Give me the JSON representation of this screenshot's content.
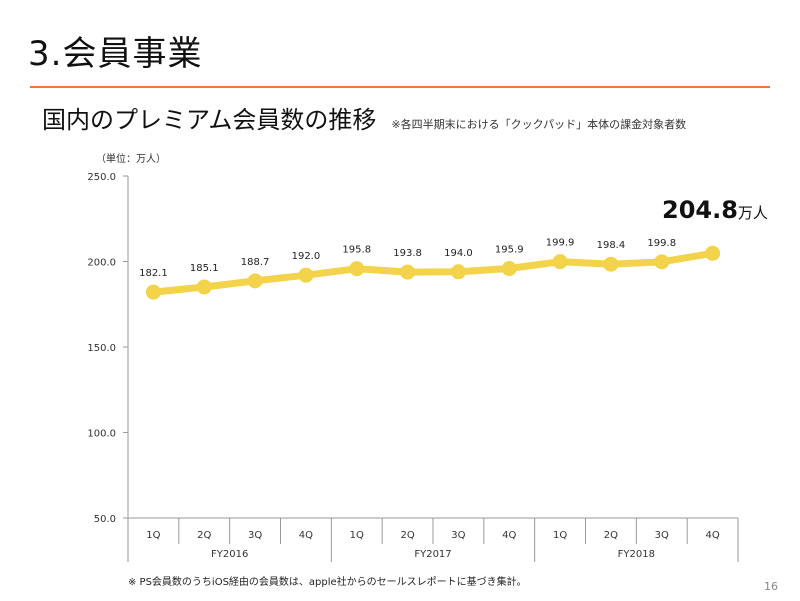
{
  "slide": {
    "title": "3.会員事業",
    "subtitle": "国内のプレミアム会員数の推移",
    "subtitle_note": "※各四半期末における「クックパッド」本体の課金対象者数",
    "footnote": "※ PS会員数のうちiOS経由の会員数は、apple社からのセールスレポートに基づき集計。",
    "page_number": "16"
  },
  "chart_data": {
    "type": "line",
    "unit_label": "（単位：万人）",
    "ylim": [
      50,
      250
    ],
    "yticks": [
      "250.0",
      "200.0",
      "150.0",
      "100.0",
      "50.0"
    ],
    "categories": [
      "1Q",
      "2Q",
      "3Q",
      "4Q",
      "1Q",
      "2Q",
      "3Q",
      "4Q",
      "1Q",
      "2Q",
      "3Q",
      "4Q"
    ],
    "groups": [
      {
        "label": "FY2016",
        "span": 4
      },
      {
        "label": "FY2017",
        "span": 4
      },
      {
        "label": "FY2018",
        "span": 4
      }
    ],
    "series": [
      {
        "values": [
          182.1,
          185.1,
          188.7,
          192.0,
          195.8,
          193.8,
          194.0,
          195.9,
          199.9,
          198.4,
          199.8,
          204.8
        ],
        "data_labels": [
          "182.1",
          "185.1",
          "188.7",
          "192.0",
          "195.8",
          "193.8",
          "194.0",
          "195.9",
          "199.9",
          "198.4",
          "199.8",
          ""
        ],
        "color": "#f3d34a"
      }
    ],
    "highlight": {
      "value": "204.8",
      "unit": "万人"
    },
    "axis_color": "#999999",
    "grid": false,
    "legend": "none"
  }
}
